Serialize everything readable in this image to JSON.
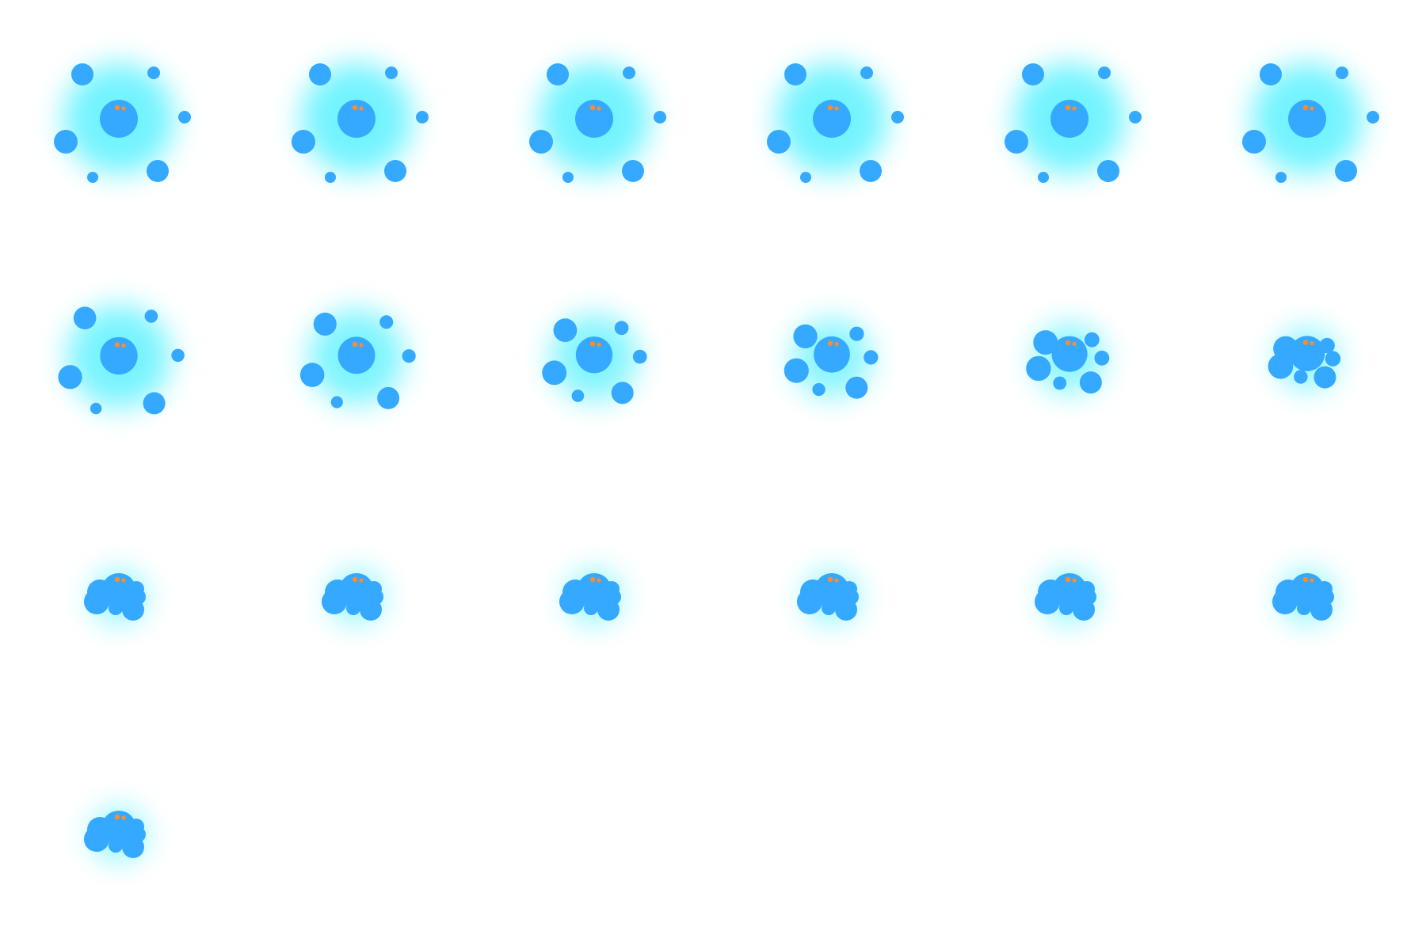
{
  "sprite_sheet": {
    "columns": 6,
    "rows": 4,
    "frame_count": 19,
    "colors": {
      "background": "#ffffff",
      "blob": "#35a9ff",
      "glow": "#00eaff",
      "eyes": "#ff8c2a"
    },
    "animation": "blobs-merge",
    "icons": [
      "central-blob-icon",
      "satellite-blob-icon",
      "eye-icon",
      "glow-aura"
    ]
  }
}
